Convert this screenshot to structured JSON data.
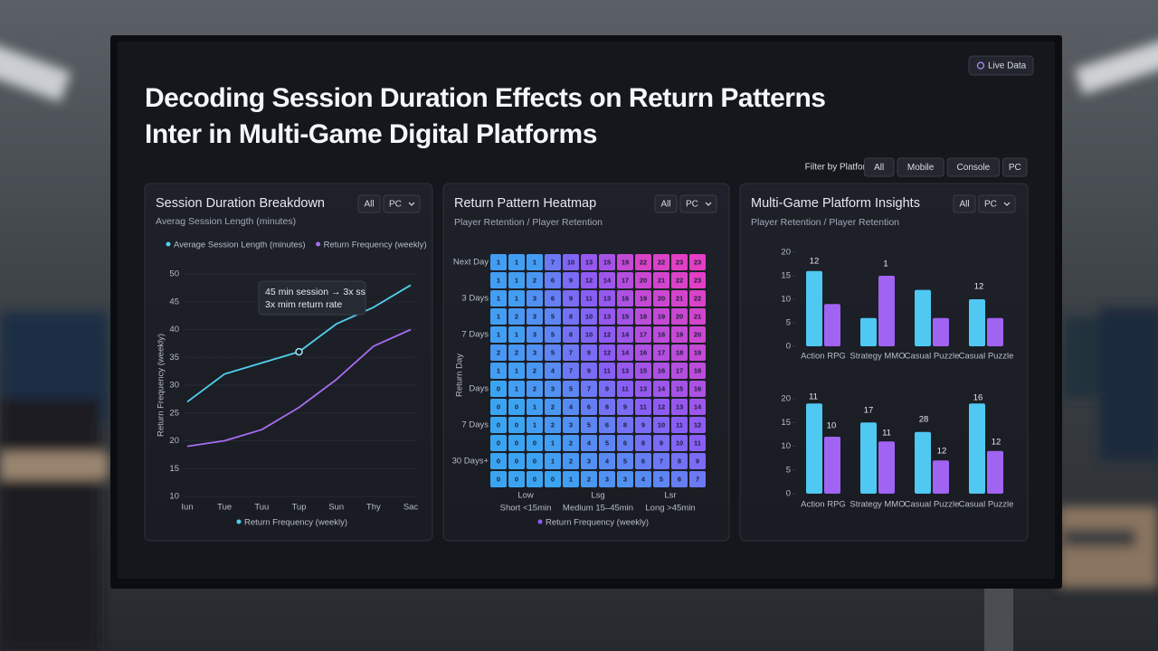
{
  "header": {
    "title_line1": "Decoding Session Duration Effects on Return Patterns",
    "title_line2": "Inter in Multi-Game Digital Platforms",
    "badge": "Live Data"
  },
  "filters": {
    "label": "Filter by Platform:",
    "options": [
      "All",
      "Mobile",
      "Console",
      "PC"
    ]
  },
  "panels": [
    {
      "title": "Session Duration Breakdown",
      "buttons": [
        "All",
        "PC"
      ]
    },
    {
      "title": "Return Pattern Heatmap",
      "buttons": [
        "All",
        "PC"
      ]
    },
    {
      "title": "Multi-Game Platform Insights",
      "buttons": [
        "All",
        "PC"
      ]
    }
  ],
  "chart_data": [
    {
      "type": "line",
      "subtitle": "Averag Session Length (minutes)",
      "y_label": "Return Frequency (weekly)",
      "bottom_legend": "Return Frequency (weekly)",
      "annotation": [
        "45 min session → 3x ss",
        "3x mim return rate"
      ],
      "categories": [
        "Iun",
        "Tue",
        "Tuu",
        "Tup",
        "Sun",
        "Thy",
        "Sac"
      ],
      "series": [
        {
          "name": "Average Session Length (minutes)",
          "color": "#4fd1ee",
          "values": [
            27,
            32,
            34,
            36,
            41,
            44,
            48
          ]
        },
        {
          "name": "Return Frequency (weekly)",
          "color": "#a66cf0",
          "values": [
            19,
            20,
            22,
            26,
            31,
            37,
            40
          ]
        }
      ],
      "ylim": [
        10,
        50
      ],
      "yticks": [
        10,
        15,
        20,
        25,
        30,
        35,
        40,
        45,
        50
      ],
      "grid": true
    },
    {
      "type": "heatmap",
      "subtitle": "Player Retention / Player Retention",
      "y_label": "Return Day",
      "bottom_legend": "Return Frequency (weekly)",
      "row_labels": [
        "Next Day",
        null,
        "3 Days",
        null,
        "7 Days",
        null,
        null,
        "Days",
        null,
        "7 Days",
        null,
        "30 Days+",
        null
      ],
      "x_groups": [
        {
          "label": "Low",
          "range": "Short <15min"
        },
        {
          "label": "Lsg",
          "range": "Medium 15–45min"
        },
        {
          "label": "Lsr",
          "range": "Long >45min"
        }
      ],
      "clim": [
        0,
        23
      ],
      "colors": [
        "#3ba4f2",
        "#8b5cf6",
        "#e23fc4"
      ],
      "values": [
        [
          1,
          1,
          1,
          7,
          10,
          13,
          15,
          19,
          22,
          22,
          23,
          23
        ],
        [
          1,
          1,
          2,
          6,
          9,
          12,
          14,
          17,
          20,
          21,
          22,
          23
        ],
        [
          1,
          1,
          3,
          6,
          9,
          11,
          13,
          16,
          19,
          20,
          21,
          22
        ],
        [
          1,
          2,
          3,
          5,
          8,
          10,
          13,
          15,
          18,
          19,
          20,
          21
        ],
        [
          1,
          1,
          3,
          5,
          8,
          10,
          12,
          14,
          17,
          18,
          19,
          20
        ],
        [
          2,
          2,
          3,
          5,
          7,
          9,
          12,
          14,
          16,
          17,
          18,
          19
        ],
        [
          1,
          1,
          2,
          4,
          7,
          9,
          11,
          13,
          15,
          16,
          17,
          18
        ],
        [
          0,
          1,
          2,
          3,
          5,
          7,
          9,
          11,
          13,
          14,
          15,
          16
        ],
        [
          0,
          0,
          1,
          2,
          4,
          6,
          8,
          9,
          11,
          12,
          13,
          14
        ],
        [
          0,
          0,
          1,
          2,
          3,
          5,
          6,
          8,
          9,
          10,
          11,
          12
        ],
        [
          0,
          0,
          0,
          1,
          2,
          4,
          5,
          6,
          8,
          9,
          10,
          11
        ],
        [
          0,
          0,
          0,
          1,
          2,
          3,
          4,
          5,
          6,
          7,
          8,
          9
        ],
        [
          0,
          0,
          0,
          0,
          1,
          2,
          3,
          3,
          4,
          5,
          6,
          7
        ]
      ]
    },
    {
      "type": "bar",
      "subtitle": "Player Retention / Player Retention",
      "categories": [
        "Action RPG",
        "Strategy MMO",
        "Casual Puzzle",
        "Casual Puzzle"
      ],
      "series": [
        {
          "color": "#4fc8f2",
          "values": [
            16,
            6,
            12,
            10
          ]
        },
        {
          "color": "#a163f2",
          "values": [
            9,
            15,
            6,
            6
          ]
        }
      ],
      "annotations": [
        "12",
        "1",
        "12"
      ],
      "ylim": [
        0,
        20
      ],
      "yticks": [
        0,
        5,
        10,
        15,
        20
      ]
    },
    {
      "type": "bar",
      "categories": [
        "Action RPG",
        "Strategy MMO",
        "Casual Puzzle",
        "Casual Puzzle"
      ],
      "series": [
        {
          "color": "#4fc8f2",
          "values": [
            19,
            15,
            13,
            19
          ]
        },
        {
          "color": "#a163f2",
          "values": [
            12,
            11,
            7,
            9
          ]
        }
      ],
      "annotations": [
        "11",
        "10",
        "17",
        "11",
        "28",
        "12",
        "16",
        "12"
      ],
      "ylim": [
        0,
        20
      ],
      "yticks": [
        0,
        5,
        10,
        15,
        20
      ]
    }
  ]
}
